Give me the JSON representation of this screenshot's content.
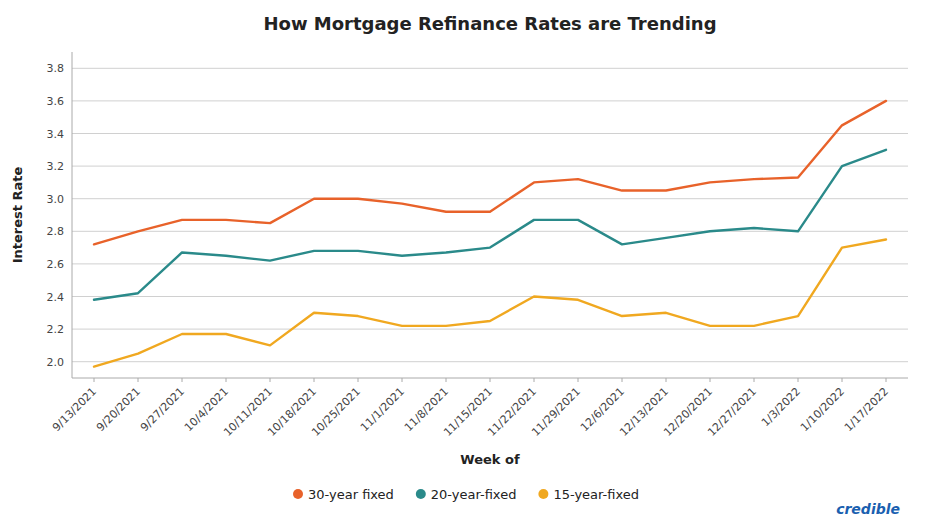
{
  "chart_data": {
    "type": "line",
    "title": "How Mortgage Refinance Rates are Trending",
    "x_label": "Week of",
    "y_label": "Interest Rate",
    "categories": [
      "9/13/2021",
      "9/20/2021",
      "9/27/2021",
      "10/4/2021",
      "10/11/2021",
      "10/18/2021",
      "10/25/2021",
      "11/1/2021",
      "11/8/2021",
      "11/15/2021",
      "11/22/2021",
      "11/29/2021",
      "12/6/2021",
      "12/13/2021",
      "12/20/2021",
      "12/27/2021",
      "1/3/2022",
      "1/10/2022",
      "1/17/2022"
    ],
    "series": [
      {
        "name": "30-year fixed",
        "color": "#e8622a",
        "values": [
          2.72,
          2.8,
          2.87,
          2.87,
          2.85,
          3.0,
          3.0,
          2.97,
          2.92,
          2.92,
          3.1,
          3.12,
          3.05,
          3.05,
          3.1,
          3.12,
          3.13,
          3.45,
          3.6
        ]
      },
      {
        "name": "20-year-fixed",
        "color": "#2a8a8a",
        "values": [
          2.38,
          2.42,
          2.67,
          2.65,
          2.62,
          2.68,
          2.68,
          2.65,
          2.67,
          2.7,
          2.87,
          2.87,
          2.72,
          2.76,
          2.8,
          2.82,
          2.8,
          3.2,
          3.3
        ]
      },
      {
        "name": "15-year-fixed",
        "color": "#f0a820",
        "values": [
          1.97,
          2.05,
          2.17,
          2.17,
          2.1,
          2.3,
          2.28,
          2.22,
          2.22,
          2.25,
          2.4,
          2.38,
          2.28,
          2.3,
          2.22,
          2.22,
          2.28,
          2.7,
          2.75
        ]
      }
    ],
    "ylim": [
      1.9,
      3.9
    ],
    "yticks": [
      {
        "value": 2,
        "label": "2.0"
      },
      2.2,
      2.4,
      2.6,
      2.8,
      {
        "value": 3,
        "label": "3.0"
      },
      3.2,
      3.4,
      3.6,
      3.8
    ],
    "grid": true,
    "legend": "bottom",
    "annotations": [
      {
        "text": "credible",
        "color": "#1a5fb0"
      }
    ]
  }
}
